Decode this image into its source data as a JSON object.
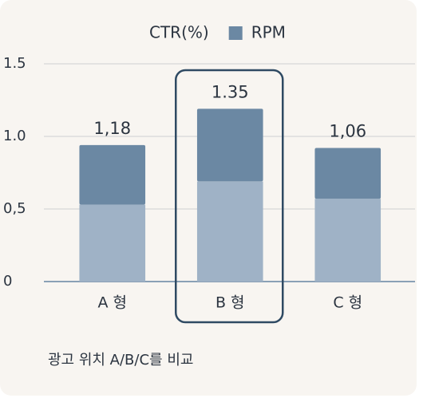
{
  "chart_data": {
    "type": "stacked_bar",
    "categories": [
      "A 형",
      "B 형",
      "C 형"
    ],
    "series": [
      {
        "name": "CTR(%)",
        "color": "#9fb2c6",
        "values": [
          0.53,
          0.69,
          0.57
        ]
      },
      {
        "name": "RPM",
        "color": "#6b88a3",
        "values": [
          0.41,
          0.5,
          0.35
        ]
      }
    ],
    "annotations": [
      "1,18",
      "1.35",
      "1,06"
    ],
    "ylim": [
      0,
      1.5
    ],
    "yticks": [
      0,
      {
        "value": 0.5,
        "label": "0,5"
      },
      {
        "value": 1,
        "label": "1.0"
      },
      {
        "value": 1.5,
        "label": "1.5"
      }
    ],
    "grid": true,
    "highlight": "B 형",
    "caption": "광고 위치 A/B/C를 비교"
  }
}
